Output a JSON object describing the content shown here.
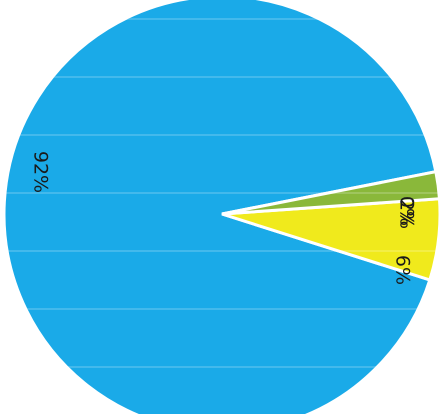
{
  "chart_data": {
    "type": "pie",
    "slices": [
      {
        "label": "92%",
        "value": 92,
        "color": "#1aaae8"
      },
      {
        "label": "6%",
        "value": 6,
        "color": "#f0ea1c"
      },
      {
        "label": "2%",
        "value": 2,
        "color": "#8ab83a"
      },
      {
        "label": "0%",
        "value": 0,
        "color": "#f0e33a"
      }
    ],
    "legend": "none"
  }
}
